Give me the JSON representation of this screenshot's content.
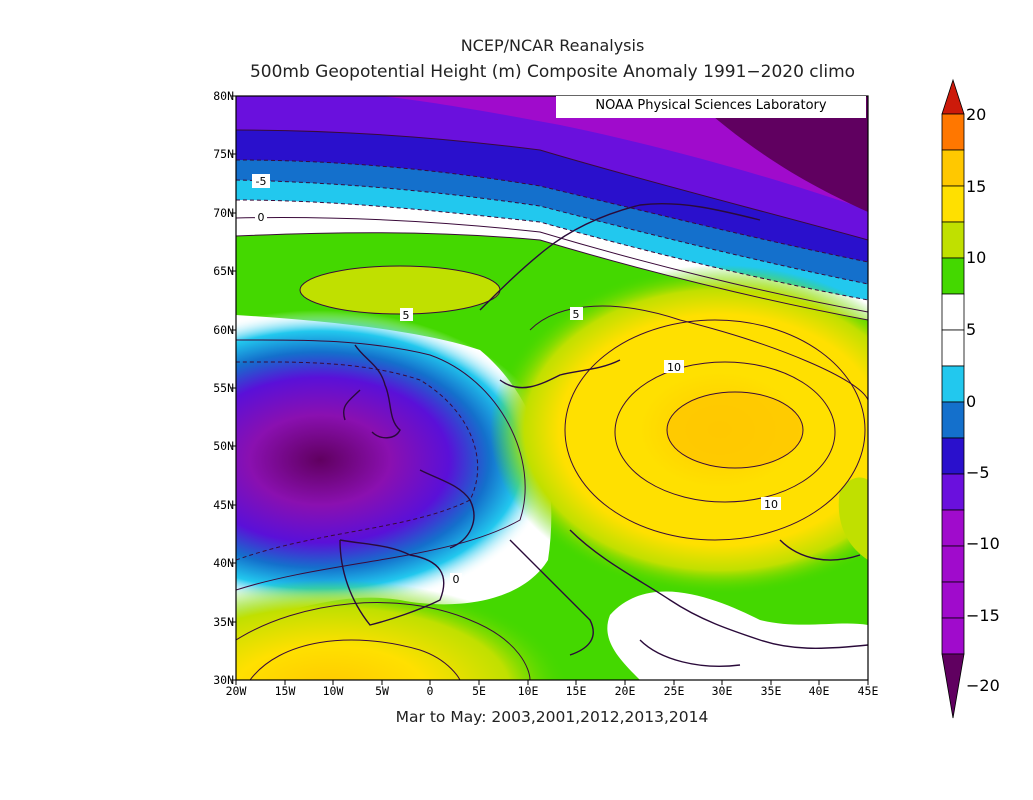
{
  "title_line1": "NCEP/NCAR Reanalysis",
  "title_line2": "500mb Geopotential Height (m) Composite Anomaly 1991−2020 climo",
  "credit": "NOAA Physical Sciences Laboratory",
  "subtitle": "Mar to May: 2003,2001,2012,2013,2014",
  "lat_ticks": [
    "80N",
    "75N",
    "70N",
    "65N",
    "60N",
    "55N",
    "50N",
    "45N",
    "40N",
    "35N",
    "30N"
  ],
  "lon_ticks": [
    "20W",
    "15W",
    "10W",
    "5W",
    "0",
    "5E",
    "10E",
    "15E",
    "20E",
    "25E",
    "30E",
    "35E",
    "40E",
    "45E"
  ],
  "contour_labels": [
    "-5",
    "0",
    "5",
    "5",
    "10",
    "10",
    "0"
  ],
  "colorbar": {
    "labels": [
      "20",
      "15",
      "10",
      "5",
      "0",
      "−5",
      "−10",
      "−15",
      "−20"
    ],
    "colors": [
      "#cc1a0a",
      "#ff7700",
      "#ffc800",
      "#ffe000",
      "#c0e000",
      "#44d800",
      "#ffffff",
      "#ffffff",
      "#22c8ee",
      "#1470cc",
      "#2a10cc",
      "#6a10dd",
      "#a00bcc",
      "#600060"
    ]
  }
}
